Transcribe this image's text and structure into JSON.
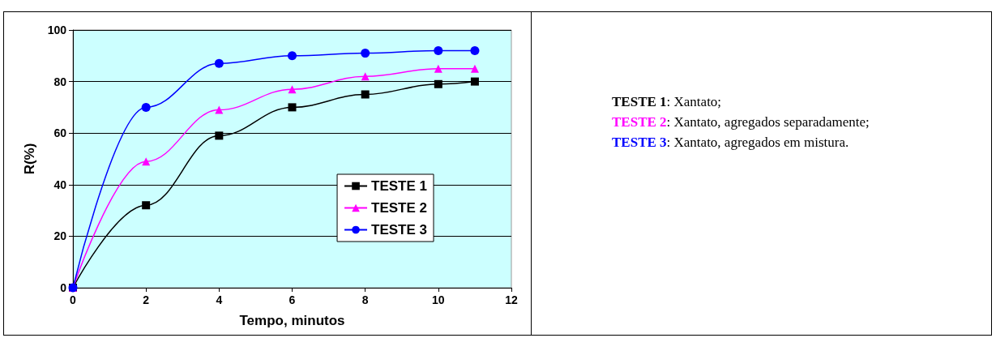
{
  "chart_data": {
    "type": "line",
    "xlabel": "Tempo, minutos",
    "ylabel": "R(%)",
    "x": [
      0,
      2,
      4,
      6,
      8,
      10,
      11
    ],
    "series": [
      {
        "name": "TESTE 1",
        "color": "#000000",
        "marker": "square",
        "values": [
          0,
          32,
          59,
          70,
          75,
          79,
          80
        ]
      },
      {
        "name": "TESTE 2",
        "color": "#ff00ff",
        "marker": "triangle",
        "values": [
          0,
          49,
          69,
          77,
          82,
          85,
          85
        ]
      },
      {
        "name": "TESTE 3",
        "color": "#0000ff",
        "marker": "circle",
        "values": [
          0,
          70,
          87,
          90,
          91,
          92,
          92
        ]
      }
    ],
    "xlim": [
      0,
      12
    ],
    "xticks": [
      0,
      2,
      4,
      6,
      8,
      10,
      12
    ],
    "ylim": [
      0,
      100
    ],
    "yticks": [
      0,
      20,
      40,
      60,
      80,
      100
    ],
    "grid": "y",
    "legend": "right",
    "annotations": [
      "TESTE 1: Xantato;",
      "TESTE 2: Xantato, agregados separadamente;",
      "TESTE 3: Xantato, agregados em mistura."
    ]
  }
}
